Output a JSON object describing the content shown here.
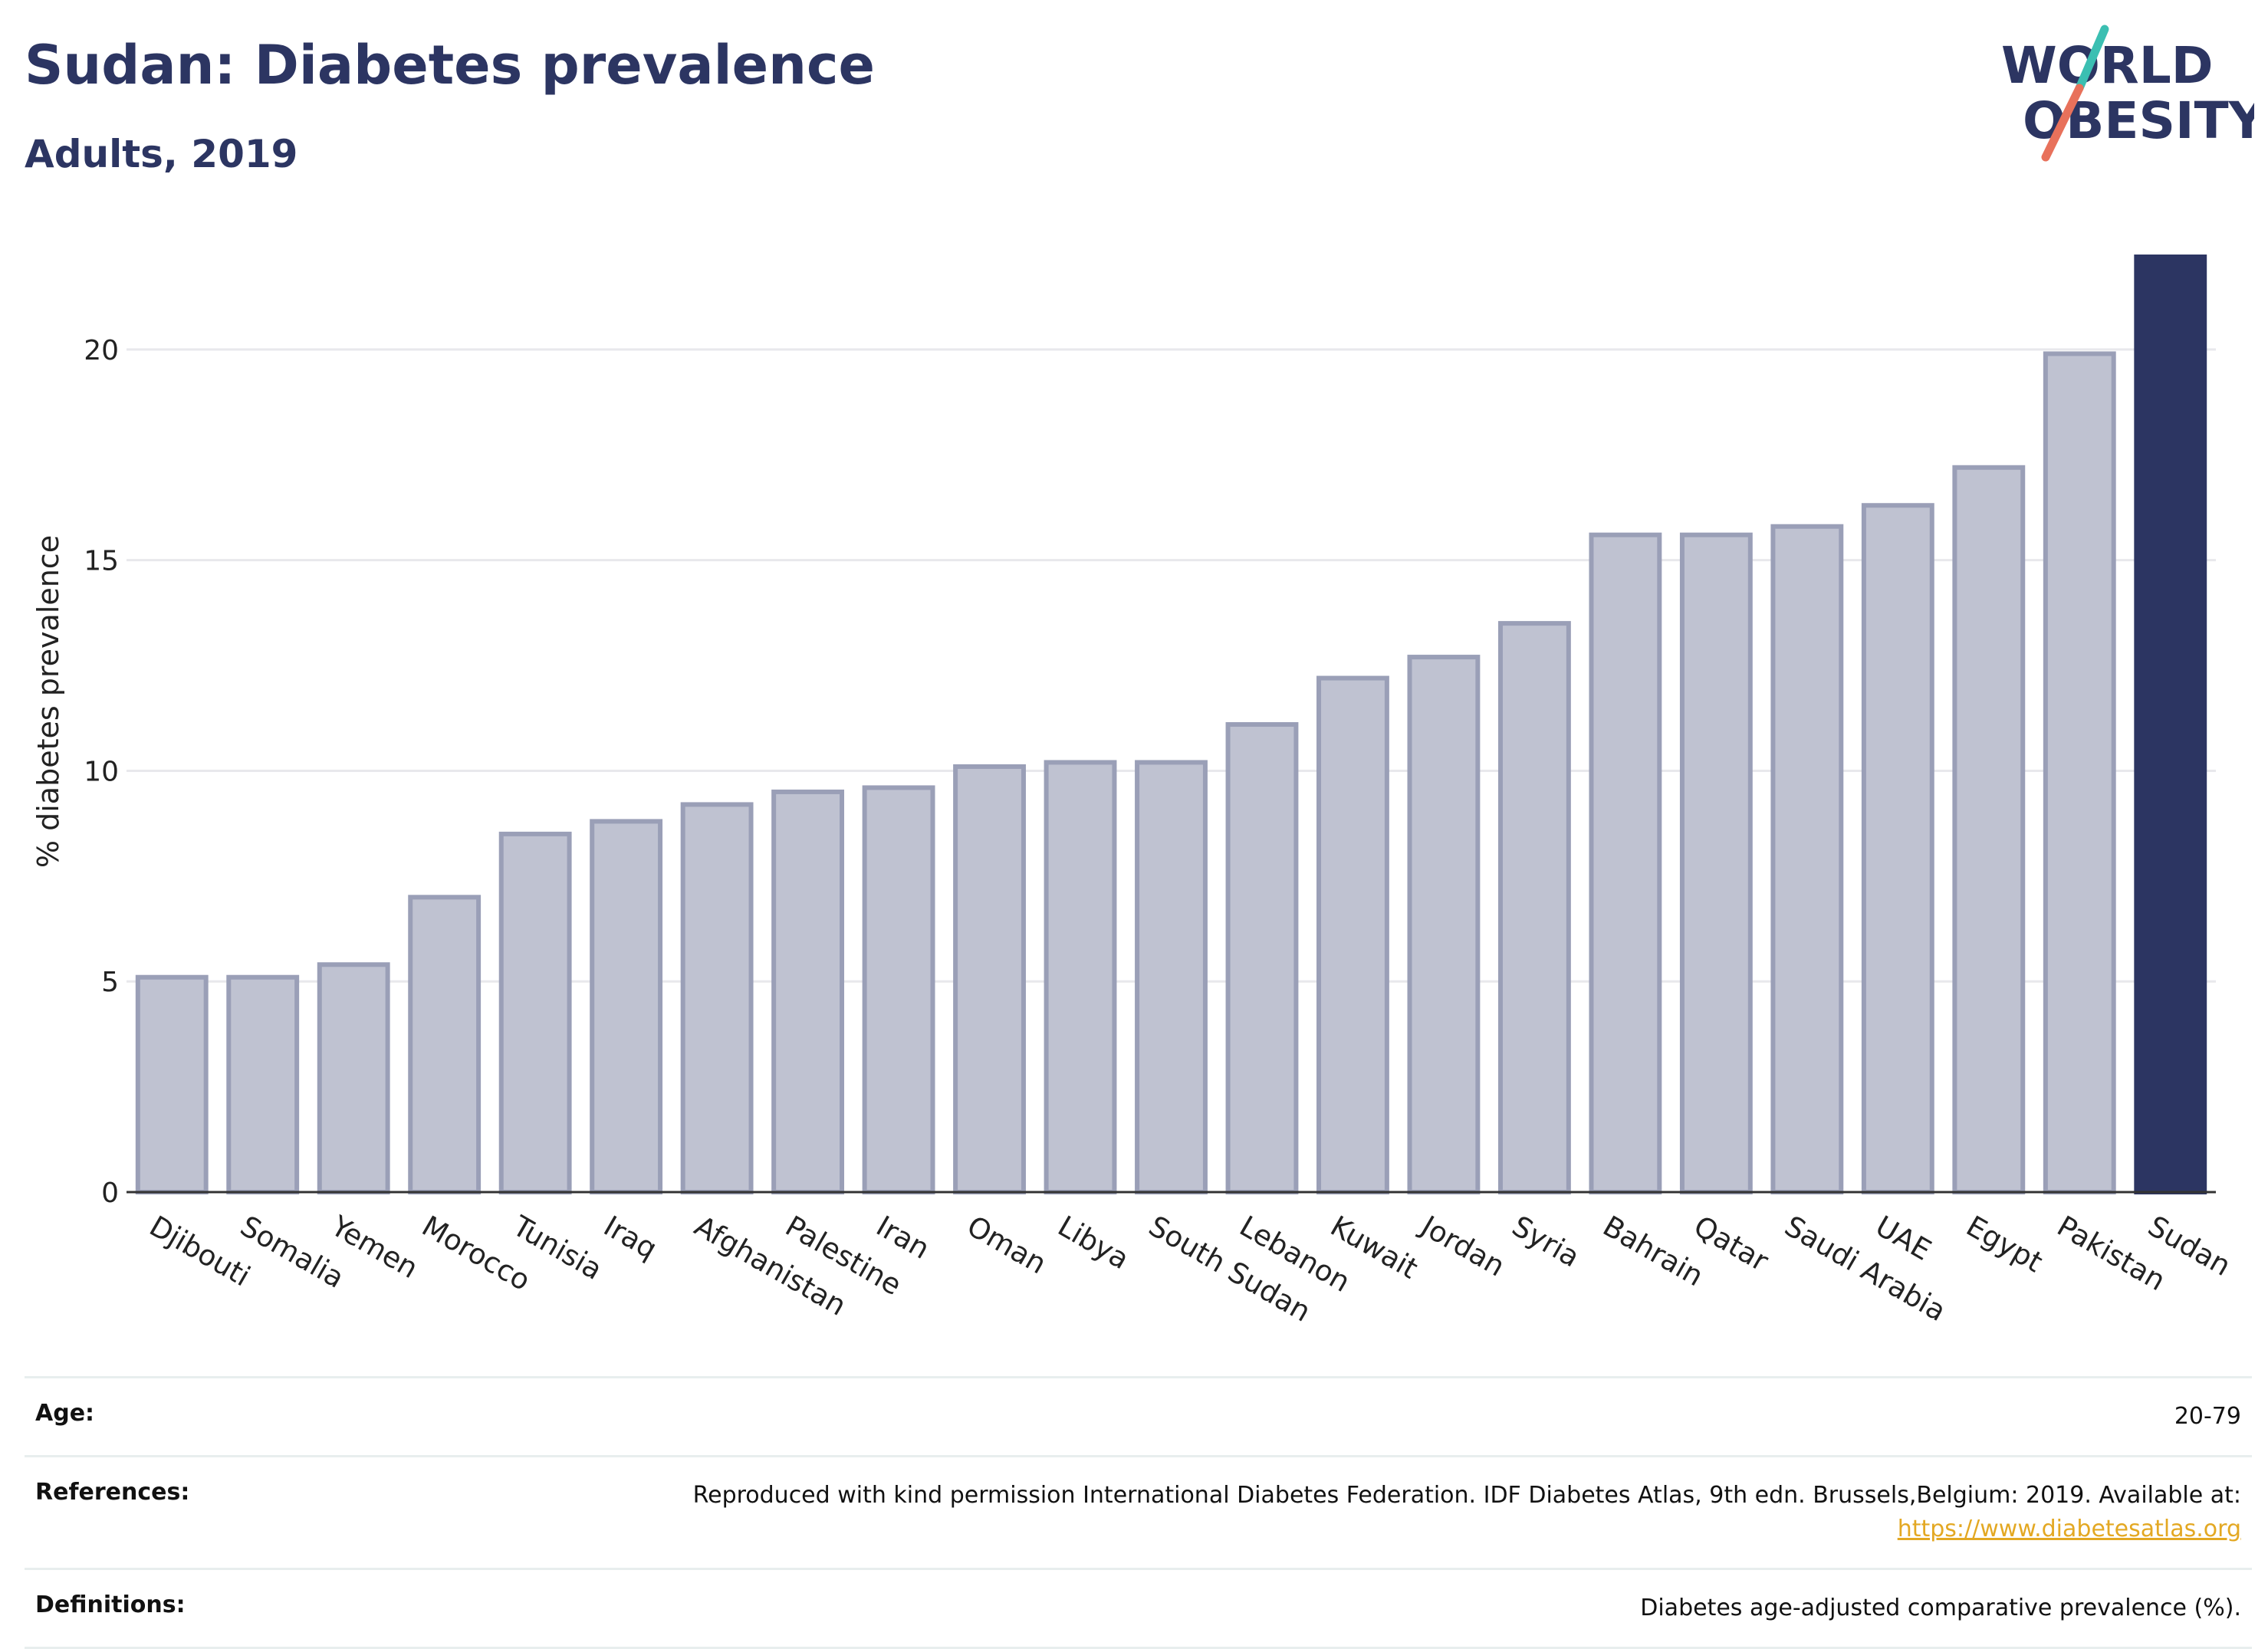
{
  "header": {
    "title": "Sudan: Diabetes prevalence",
    "subtitle": "Adults, 2019"
  },
  "logo": {
    "line1": "WORLD",
    "line2": "OBESITY",
    "text_color": "#2c3562",
    "slash_colors": [
      "#3bbfb2",
      "#e8715b"
    ]
  },
  "colors": {
    "bar_default": "#bfc2d1",
    "bar_outline": "#9a9fb7",
    "bar_highlight": "#2c3562",
    "grid": "#e8e8ec",
    "axis": "#333333"
  },
  "chart_data": {
    "type": "bar",
    "ylabel": "% diabetes prevalence",
    "ylim": [
      0,
      22.2
    ],
    "yticks": [
      0,
      5,
      10,
      15,
      20
    ],
    "grid": true,
    "highlight": "Sudan",
    "categories": [
      "Djibouti",
      "Somalia",
      "Yemen",
      "Morocco",
      "Tunisia",
      "Iraq",
      "Afghanistan",
      "Palestine",
      "Iran",
      "Oman",
      "Libya",
      "South Sudan",
      "Lebanon",
      "Kuwait",
      "Jordan",
      "Syria",
      "Bahrain",
      "Qatar",
      "Saudi Arabia",
      "UAE",
      "Egypt",
      "Pakistan",
      "Sudan"
    ],
    "values": [
      5.1,
      5.1,
      5.4,
      7.0,
      8.5,
      8.8,
      9.2,
      9.5,
      9.6,
      10.1,
      10.2,
      10.2,
      11.1,
      12.2,
      12.7,
      13.5,
      15.6,
      15.6,
      15.8,
      16.3,
      17.2,
      19.9,
      22.2
    ]
  },
  "info": {
    "rows": [
      {
        "label": "Age:",
        "value": "20-79"
      },
      {
        "label": "References:",
        "value": "Reproduced with kind permission International Diabetes Federation. IDF Diabetes Atlas, 9th edn. Brussels,Belgium: 2019. Available at:",
        "link": "https://www.diabetesatlas.org"
      },
      {
        "label": "Definitions:",
        "value": "Diabetes age-adjusted comparative prevalence (%)."
      }
    ]
  }
}
